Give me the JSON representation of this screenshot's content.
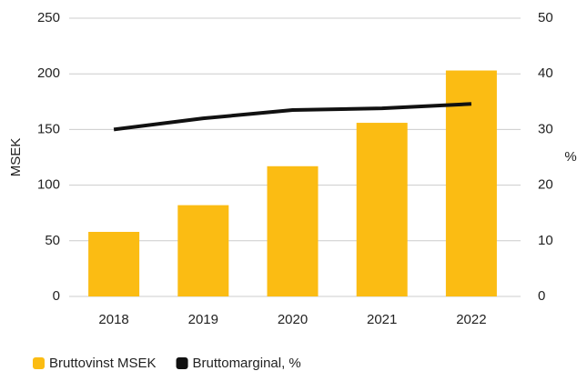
{
  "chart_data": {
    "type": "bar_line",
    "categories": [
      "2018",
      "2019",
      "2020",
      "2021",
      "2022"
    ],
    "series": [
      {
        "name": "Bruttovinst MSEK",
        "color": "#fbbc13",
        "type": "bar",
        "values": [
          58,
          82,
          117,
          156,
          203
        ]
      },
      {
        "name": "Bruttomarginal, %",
        "color": "#111111",
        "type": "line",
        "axis": "y2",
        "values": [
          30,
          32,
          33.5,
          33.8,
          34.6
        ]
      }
    ],
    "ylabel": "MSEK",
    "y2label": "%",
    "ylim": [
      0,
      250
    ],
    "yticks": [
      0,
      50,
      100,
      150,
      200,
      250
    ],
    "y2lim": [
      0,
      50
    ],
    "y2ticks": [
      0,
      10,
      20,
      30,
      40,
      50
    ],
    "grid": true,
    "legend": "bottom-left"
  }
}
